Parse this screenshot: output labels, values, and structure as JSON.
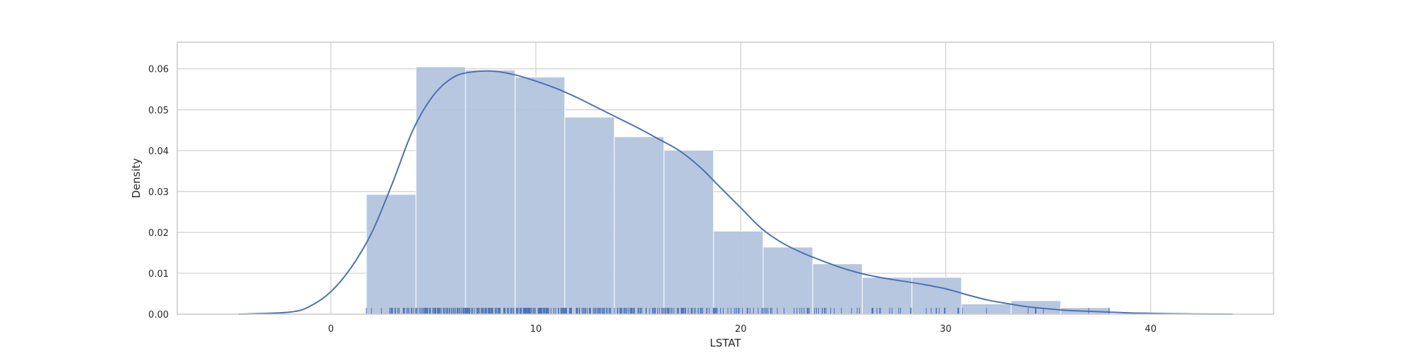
{
  "chart_data": {
    "type": "bar",
    "subtype": "histogram with kde and rug",
    "xlabel": "LSTAT",
    "ylabel": "Density",
    "xlim": [
      -7.5,
      46
    ],
    "ylim": [
      0,
      0.0665
    ],
    "xticks": [
      0,
      10,
      20,
      30,
      40
    ],
    "yticks": [
      0.0,
      0.01,
      0.02,
      0.03,
      0.04,
      0.05,
      0.06
    ],
    "grid": true,
    "colors": {
      "bars": "#b3c4de",
      "bar_edge": "#ffffff",
      "kde_line": "#4c72b0",
      "rug": "#4c72b0",
      "grid": "#cfcfcf",
      "frame": "#cccccc"
    },
    "histogram": {
      "bin_edges": [
        1.73,
        4.15,
        6.57,
        8.99,
        11.41,
        13.83,
        16.25,
        18.67,
        21.09,
        23.51,
        25.93,
        28.35,
        30.77,
        33.19,
        35.61,
        38.03
      ],
      "densities": [
        0.0293,
        0.0605,
        0.0597,
        0.058,
        0.0482,
        0.0434,
        0.0401,
        0.0203,
        0.0164,
        0.0123,
        0.009,
        0.009,
        0.0025,
        0.0033,
        0.0016
      ]
    },
    "kde": {
      "x": [
        -4.5,
        -2,
        -1,
        0,
        1,
        2,
        3,
        4,
        5,
        6,
        7,
        8,
        9,
        10,
        11,
        12,
        13,
        14,
        15,
        16,
        17,
        18,
        19,
        20,
        21,
        22,
        23,
        24,
        25,
        26,
        27,
        28,
        29,
        30,
        31,
        32,
        33,
        34,
        35,
        36,
        37,
        38,
        39,
        40,
        41,
        42,
        43,
        44
      ],
      "y": [
        0.0,
        0.0005,
        0.002,
        0.0055,
        0.0115,
        0.02,
        0.032,
        0.045,
        0.0535,
        0.058,
        0.0593,
        0.0594,
        0.0585,
        0.057,
        0.0552,
        0.053,
        0.0505,
        0.048,
        0.0455,
        0.0428,
        0.04,
        0.036,
        0.031,
        0.026,
        0.021,
        0.0175,
        0.015,
        0.013,
        0.0112,
        0.0098,
        0.0088,
        0.008,
        0.0072,
        0.0062,
        0.0048,
        0.0035,
        0.0026,
        0.0018,
        0.0013,
        0.0009,
        0.0007,
        0.0005,
        0.0003,
        0.0002,
        0.0001,
        5e-05,
        2e-05,
        0.0
      ]
    },
    "rug_x": [
      1.73,
      1.98,
      2.47,
      2.87,
      2.88,
      2.94,
      2.96,
      2.97,
      2.98,
      3.01,
      3.11,
      3.16,
      3.26,
      3.32,
      3.33,
      3.53,
      3.56,
      3.57,
      3.59,
      3.7,
      3.76,
      3.81,
      3.92,
      3.95,
      4.03,
      4.14,
      4.16,
      4.21,
      4.32,
      4.38,
      4.45,
      4.5,
      4.56,
      4.59,
      4.61,
      4.63,
      4.67,
      4.69,
      4.7,
      4.73,
      4.81,
      4.82,
      4.84,
      4.85,
      4.86,
      4.97,
      4.98,
      5.03,
      5.04,
      5.08,
      5.1,
      5.12,
      5.19,
      5.21,
      5.25,
      5.28,
      5.29,
      5.33,
      5.39,
      5.49,
      5.5,
      5.52,
      5.57,
      5.64,
      5.68,
      5.7,
      5.77,
      5.81,
      5.89,
      5.9,
      5.91,
      5.98,
      5.99,
      6.05,
      6.07,
      6.15,
      6.19,
      6.21,
      6.27,
      6.29,
      6.36,
      6.43,
      6.47,
      6.48,
      6.53,
      6.56,
      6.58,
      6.59,
      6.62,
      6.65,
      6.68,
      6.72,
      6.73,
      6.75,
      6.78,
      6.86,
      6.87,
      6.92,
      7.01,
      7.12,
      7.14,
      7.18,
      7.19,
      7.2,
      7.26,
      7.34,
      7.37,
      7.39,
      7.43,
      7.44,
      7.51,
      7.53,
      7.54,
      7.56,
      7.6,
      7.67,
      7.7,
      7.73,
      7.74,
      7.79,
      7.83,
      7.85,
      7.88,
      7.9,
      8.01,
      8.05,
      8.1,
      8.16,
      8.2,
      8.23,
      8.26,
      8.43,
      8.44,
      8.47,
      8.51,
      8.61,
      8.65,
      8.67,
      8.77,
      8.79,
      8.81,
      8.88,
      8.93,
      9.04,
      9.08,
      9.1,
      9.14,
      9.22,
      9.25,
      9.28,
      9.29,
      9.38,
      9.42,
      9.43,
      9.45,
      9.47,
      9.5,
      9.51,
      9.52,
      9.53,
      9.55,
      9.59,
      9.62,
      9.64,
      9.67,
      9.68,
      9.69,
      9.71,
      9.74,
      9.8,
      9.81,
      9.88,
      9.93,
      9.97,
      10.11,
      10.13,
      10.15,
      10.16,
      10.19,
      10.21,
      10.24,
      10.26,
      10.27,
      10.29,
      10.3,
      10.36,
      10.4,
      10.42,
      10.45,
      10.5,
      10.53,
      10.56,
      10.58,
      10.59,
      10.63,
      10.74,
      10.87,
      10.88,
      10.97,
      11.1,
      11.12,
      11.22,
      11.25,
      11.28,
      11.32,
      11.34,
      11.38,
      11.41,
      11.45,
      11.48,
      11.5,
      11.64,
      11.65,
      11.66,
      11.69,
      11.72,
      11.74,
      11.97,
      11.98,
      12.01,
      12.03,
      12.04,
      12.12,
      12.13,
      12.14,
      12.26,
      12.27,
      12.33,
      12.34,
      12.4,
      12.43,
      12.5,
      12.6,
      12.64,
      12.67,
      12.8,
      12.86,
      12.87,
      12.92,
      12.93,
      13.0,
      13.04,
      13.09,
      13.11,
      13.15,
      13.22,
      13.27,
      13.28,
      13.33,
      13.34,
      13.35,
      13.44,
      13.45,
      13.51,
      13.59,
      13.61,
      13.65,
      13.83,
      13.98,
      13.99,
      14.0,
      14.1,
      14.13,
      14.15,
      14.19,
      14.27,
      14.33,
      14.36,
      14.37,
      14.43,
      14.44,
      14.52,
      14.59,
      14.64,
      14.66,
      14.67,
      14.69,
      14.7,
      14.76,
      14.79,
      14.8,
      14.81,
      14.98,
      15.02,
      15.03,
      15.1,
      15.12,
      15.17,
      15.37,
      15.39,
      15.55,
      15.69,
      15.7,
      15.71,
      15.76,
      15.79,
      15.84,
      15.94,
      16.03,
      16.14,
      16.2,
      16.21,
      16.22,
      16.23,
      16.29,
      16.3,
      16.35,
      16.42,
      16.44,
      16.47,
      16.51,
      16.59,
      16.65,
      16.74,
      16.9,
      16.94,
      16.96,
      17.09,
      17.1,
      17.11,
      17.12,
      17.15,
      17.16,
      17.19,
      17.21,
      17.27,
      17.28,
      17.31,
      17.44,
      17.58,
      17.6,
      17.64,
      17.73,
      17.79,
      17.92,
      17.93,
      18.03,
      18.05,
      18.06,
      18.07,
      18.13,
      18.14,
      18.33,
      18.34,
      18.35,
      18.46,
      18.66,
      18.68,
      18.71,
      18.72,
      18.76,
      18.8,
      18.85,
      19.01,
      19.15,
      19.37,
      19.52,
      19.69,
      19.77,
      19.78,
      19.88,
      19.92,
      20.08,
      20.31,
      20.32,
      20.34,
      20.45,
      20.62,
      20.85,
      21.02,
      21.08,
      21.14,
      21.22,
      21.24,
      21.32,
      21.45,
      21.46,
      21.52,
      21.78,
      22.11,
      22.6,
      22.74,
      22.88,
      22.98,
      23.09,
      23.24,
      23.27,
      23.29,
      23.34,
      23.6,
      23.69,
      23.79,
      23.97,
      23.98,
      24.08,
      24.1,
      24.16,
      24.39,
      24.56,
      24.91,
      25.41,
      25.68,
      25.79,
      26.4,
      26.42,
      26.45,
      26.64,
      26.77,
      26.82,
      27.26,
      27.38,
      27.71,
      27.8,
      28.28,
      28.32,
      29.05,
      29.29,
      29.53,
      29.55,
      29.68,
      29.93,
      29.97,
      30.59,
      30.62,
      30.63,
      30.81,
      31.99,
      34.02,
      34.37,
      34.41,
      34.77,
      36.98,
      37.97
    ]
  }
}
